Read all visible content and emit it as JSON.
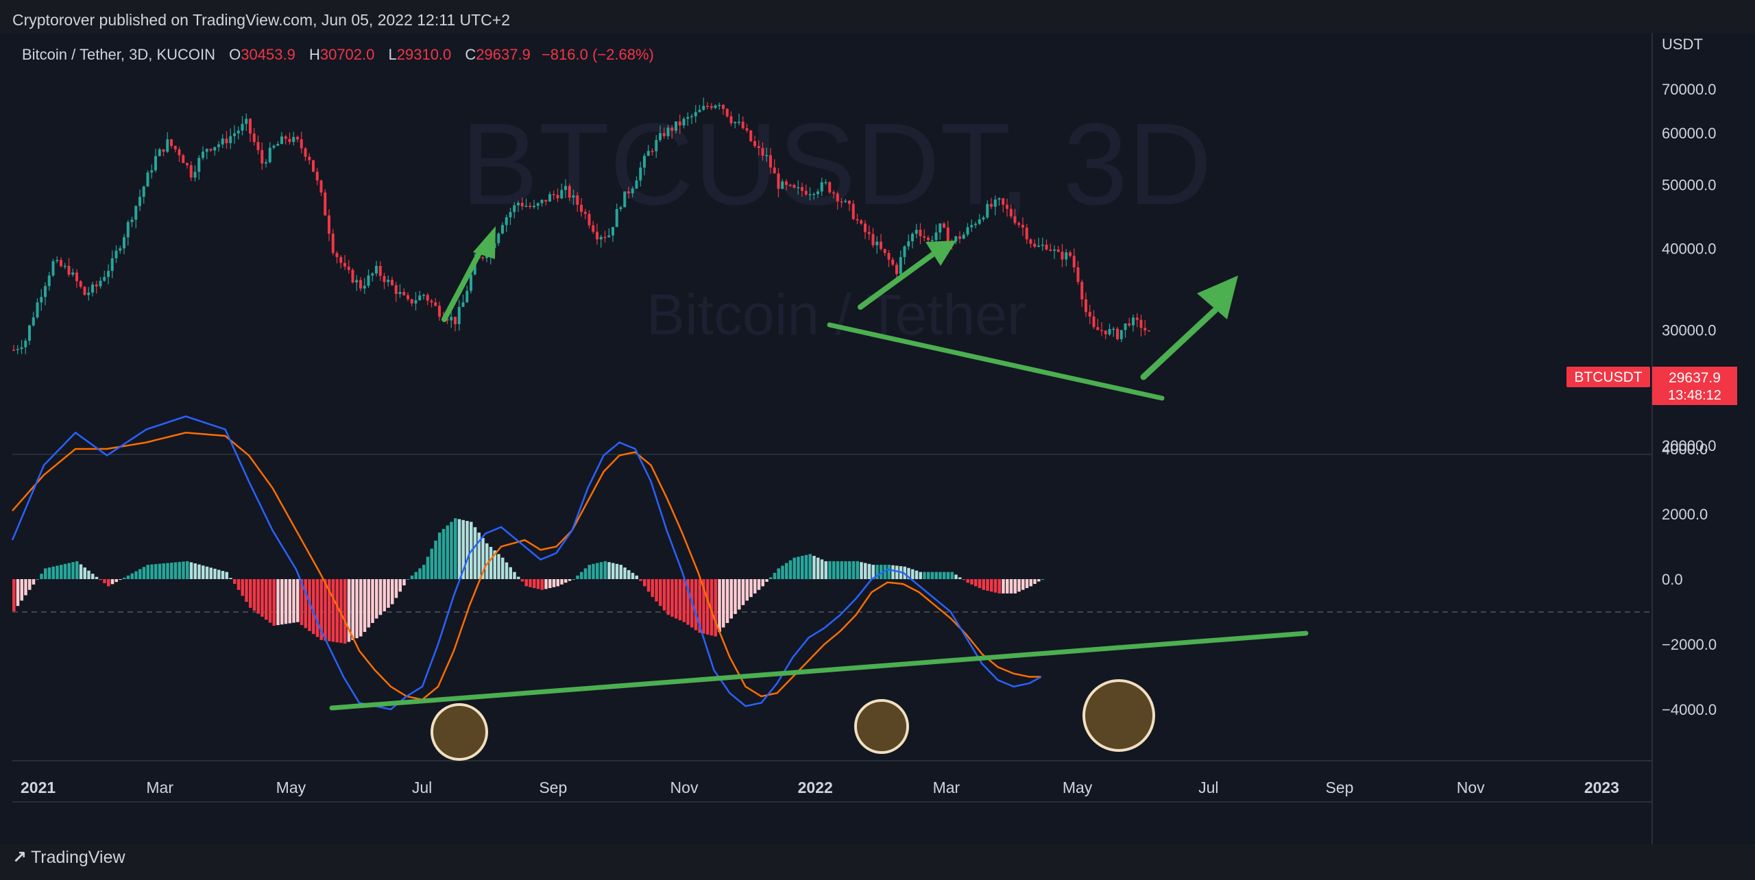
{
  "header": {
    "publisher": "Cryptorover published on TradingView.com, Jun 05, 2022 12:11 UTC+2"
  },
  "legend": {
    "symbol": "Bitcoin / Tether, 3D, KUCOIN",
    "o_label": "O",
    "o": "30453.9",
    "h_label": "H",
    "h": "30702.0",
    "l_label": "L",
    "l": "29310.0",
    "c_label": "C",
    "c": "29637.9",
    "change": "−816.0 (−2.68%)"
  },
  "watermark": {
    "line1": "BTCUSDT, 3D",
    "line2": "Bitcoin / Tether"
  },
  "price_badge": {
    "symbol": "BTCUSDT",
    "price": "29637.9",
    "countdown": "13:48:12"
  },
  "footer": {
    "brand": "TradingView",
    "logo": "tradingview-logo-icon"
  },
  "colors": {
    "up": "#26a69a",
    "down": "#f23645",
    "macd": "#2962ff",
    "signal": "#ff6d00",
    "annotation": "#4caf50",
    "bg": "#131722"
  },
  "chart_data": {
    "type": "candlestick",
    "currency": "USDT",
    "price_axis": {
      "ticks": [
        "70000.0",
        "60000.0",
        "50000.0",
        "40000.0",
        "30000.0",
        "20000.0"
      ],
      "range": [
        20000,
        70000
      ]
    },
    "macd_axis": {
      "ticks": [
        "4000.0",
        "2000.0",
        "0.0",
        "−2000.0",
        "−4000.0"
      ],
      "range": [
        -4000,
        4000
      ]
    },
    "time_axis": [
      {
        "label": "2021",
        "bold": true
      },
      {
        "label": "Mar"
      },
      {
        "label": "May"
      },
      {
        "label": "Jul"
      },
      {
        "label": "Sep"
      },
      {
        "label": "Nov"
      },
      {
        "label": "2022",
        "bold": true
      },
      {
        "label": "Mar"
      },
      {
        "label": "May"
      },
      {
        "label": "Jul"
      },
      {
        "label": "Sep"
      },
      {
        "label": "Nov"
      },
      {
        "label": "2023",
        "bold": true
      }
    ],
    "price_path": [
      [
        0,
        28000
      ],
      [
        3,
        29000
      ],
      [
        6,
        33000
      ],
      [
        10,
        38000
      ],
      [
        14,
        37000
      ],
      [
        18,
        34000
      ],
      [
        21,
        35000
      ],
      [
        25,
        38000
      ],
      [
        28,
        42000
      ],
      [
        32,
        48000
      ],
      [
        36,
        55000
      ],
      [
        39,
        58000
      ],
      [
        42,
        56000
      ],
      [
        45,
        52000
      ],
      [
        49,
        57000
      ],
      [
        53,
        58000
      ],
      [
        56,
        60000
      ],
      [
        59,
        62000
      ],
      [
        61,
        58000
      ],
      [
        63,
        54000
      ],
      [
        66,
        57000
      ],
      [
        69,
        59000
      ],
      [
        72,
        58000
      ],
      [
        75,
        55000
      ],
      [
        78,
        48000
      ],
      [
        81,
        40000
      ],
      [
        84,
        37000
      ],
      [
        88,
        35000
      ],
      [
        92,
        37000
      ],
      [
        96,
        35000
      ],
      [
        100,
        33000
      ],
      [
        104,
        34000
      ],
      [
        108,
        32000
      ],
      [
        112,
        31000
      ],
      [
        114,
        33000
      ],
      [
        117,
        38000
      ],
      [
        121,
        40000
      ],
      [
        124,
        44000
      ],
      [
        128,
        47000
      ],
      [
        132,
        46000
      ],
      [
        136,
        48000
      ],
      [
        140,
        49000
      ],
      [
        144,
        46000
      ],
      [
        148,
        42000
      ],
      [
        151,
        42000
      ],
      [
        154,
        47000
      ],
      [
        157,
        50000
      ],
      [
        161,
        56000
      ],
      [
        165,
        60000
      ],
      [
        169,
        62000
      ],
      [
        173,
        64000
      ],
      [
        176,
        66000
      ],
      [
        179,
        67000
      ],
      [
        182,
        63000
      ],
      [
        185,
        61000
      ],
      [
        188,
        57000
      ],
      [
        191,
        55000
      ],
      [
        194,
        50000
      ],
      [
        198,
        49000
      ],
      [
        202,
        49000
      ],
      [
        206,
        50000
      ],
      [
        209,
        48000
      ],
      [
        212,
        46000
      ],
      [
        215,
        43000
      ],
      [
        218,
        41000
      ],
      [
        221,
        39000
      ],
      [
        224,
        37000
      ],
      [
        226,
        40000
      ],
      [
        229,
        43000
      ],
      [
        232,
        41000
      ],
      [
        235,
        43000
      ],
      [
        238,
        41000
      ],
      [
        241,
        42000
      ],
      [
        244,
        44000
      ],
      [
        247,
        46000
      ],
      [
        250,
        47000
      ],
      [
        253,
        45000
      ],
      [
        256,
        43000
      ],
      [
        259,
        40000
      ],
      [
        262,
        40500
      ],
      [
        265,
        39000
      ],
      [
        268,
        39000
      ],
      [
        270,
        36000
      ],
      [
        272,
        32000
      ],
      [
        274,
        30000
      ],
      [
        277,
        30000
      ],
      [
        280,
        29500
      ],
      [
        283,
        31000
      ],
      [
        286,
        30500
      ],
      [
        288,
        29600
      ]
    ],
    "macd_path": [
      [
        0,
        1200
      ],
      [
        8,
        3500
      ],
      [
        16,
        4500
      ],
      [
        24,
        3800
      ],
      [
        34,
        4600
      ],
      [
        44,
        5000
      ],
      [
        54,
        4600
      ],
      [
        60,
        3000
      ],
      [
        66,
        1500
      ],
      [
        72,
        300
      ],
      [
        78,
        -1500
      ],
      [
        84,
        -3000
      ],
      [
        88,
        -3800
      ],
      [
        92,
        -3900
      ],
      [
        96,
        -4000
      ],
      [
        100,
        -3600
      ],
      [
        104,
        -3300
      ],
      [
        108,
        -2000
      ],
      [
        112,
        -500
      ],
      [
        116,
        800
      ],
      [
        120,
        1400
      ],
      [
        124,
        1600
      ],
      [
        130,
        1000
      ],
      [
        134,
        600
      ],
      [
        138,
        800
      ],
      [
        142,
        1500
      ],
      [
        146,
        2800
      ],
      [
        150,
        3800
      ],
      [
        154,
        4200
      ],
      [
        158,
        4000
      ],
      [
        162,
        3000
      ],
      [
        166,
        1500
      ],
      [
        170,
        200
      ],
      [
        174,
        -1300
      ],
      [
        178,
        -2800
      ],
      [
        182,
        -3500
      ],
      [
        186,
        -3900
      ],
      [
        190,
        -3800
      ],
      [
        194,
        -3200
      ],
      [
        198,
        -2400
      ],
      [
        202,
        -1800
      ],
      [
        206,
        -1500
      ],
      [
        210,
        -1100
      ],
      [
        214,
        -600
      ],
      [
        218,
        0
      ],
      [
        222,
        300
      ],
      [
        226,
        200
      ],
      [
        230,
        -200
      ],
      [
        234,
        -600
      ],
      [
        238,
        -1000
      ],
      [
        242,
        -1800
      ],
      [
        246,
        -2600
      ],
      [
        250,
        -3100
      ],
      [
        254,
        -3300
      ],
      [
        258,
        -3200
      ],
      [
        261,
        -3000
      ]
    ],
    "signal_path": [
      [
        0,
        2100
      ],
      [
        8,
        3200
      ],
      [
        16,
        4000
      ],
      [
        24,
        4000
      ],
      [
        34,
        4200
      ],
      [
        44,
        4500
      ],
      [
        54,
        4400
      ],
      [
        60,
        3800
      ],
      [
        66,
        2800
      ],
      [
        72,
        1500
      ],
      [
        78,
        200
      ],
      [
        84,
        -1200
      ],
      [
        88,
        -2200
      ],
      [
        92,
        -2800
      ],
      [
        96,
        -3300
      ],
      [
        100,
        -3600
      ],
      [
        104,
        -3700
      ],
      [
        108,
        -3300
      ],
      [
        112,
        -2200
      ],
      [
        116,
        -800
      ],
      [
        120,
        400
      ],
      [
        124,
        1000
      ],
      [
        130,
        1200
      ],
      [
        134,
        900
      ],
      [
        138,
        1000
      ],
      [
        142,
        1500
      ],
      [
        146,
        2400
      ],
      [
        150,
        3300
      ],
      [
        154,
        3800
      ],
      [
        158,
        3900
      ],
      [
        162,
        3500
      ],
      [
        166,
        2500
      ],
      [
        170,
        1400
      ],
      [
        174,
        200
      ],
      [
        178,
        -1200
      ],
      [
        182,
        -2400
      ],
      [
        186,
        -3300
      ],
      [
        190,
        -3600
      ],
      [
        194,
        -3500
      ],
      [
        198,
        -3000
      ],
      [
        202,
        -2500
      ],
      [
        206,
        -2000
      ],
      [
        210,
        -1600
      ],
      [
        214,
        -1100
      ],
      [
        218,
        -400
      ],
      [
        222,
        -100
      ],
      [
        226,
        -150
      ],
      [
        230,
        -400
      ],
      [
        234,
        -800
      ],
      [
        238,
        -1200
      ],
      [
        242,
        -1700
      ],
      [
        246,
        -2300
      ],
      [
        250,
        -2700
      ],
      [
        254,
        -2900
      ],
      [
        258,
        -3000
      ],
      [
        261,
        -3000
      ]
    ],
    "annotations": [
      "green trendline (price): descending support",
      "green trendline (MACD): ascending support",
      "three circled MACD bottoms",
      "three green up arrows"
    ]
  }
}
